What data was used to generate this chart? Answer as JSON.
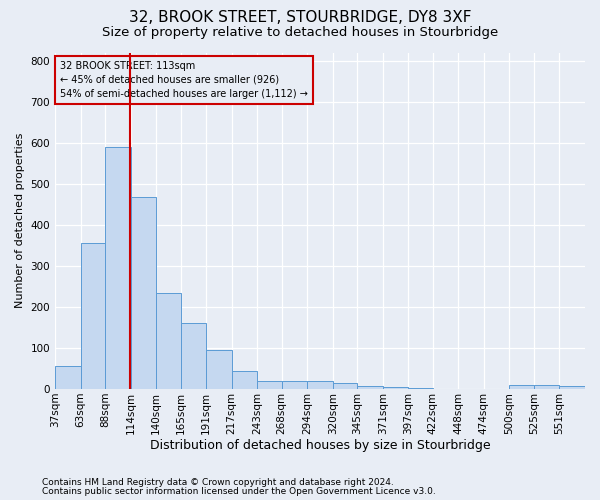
{
  "title": "32, BROOK STREET, STOURBRIDGE, DY8 3XF",
  "subtitle": "Size of property relative to detached houses in Stourbridge",
  "xlabel": "Distribution of detached houses by size in Stourbridge",
  "ylabel": "Number of detached properties",
  "footnote1": "Contains HM Land Registry data © Crown copyright and database right 2024.",
  "footnote2": "Contains public sector information licensed under the Open Government Licence v3.0.",
  "annotation_title": "32 BROOK STREET: 113sqm",
  "annotation_line1": "← 45% of detached houses are smaller (926)",
  "annotation_line2": "54% of semi-detached houses are larger (1,112) →",
  "bar_color": "#c5d8f0",
  "bar_edge_color": "#5b9bd5",
  "marker_color": "#cc0000",
  "marker_value": 113,
  "categories": [
    "37sqm",
    "63sqm",
    "88sqm",
    "114sqm",
    "140sqm",
    "165sqm",
    "191sqm",
    "217sqm",
    "243sqm",
    "268sqm",
    "294sqm",
    "320sqm",
    "345sqm",
    "371sqm",
    "397sqm",
    "422sqm",
    "448sqm",
    "474sqm",
    "500sqm",
    "525sqm",
    "551sqm"
  ],
  "bin_edges": [
    37,
    63,
    88,
    114,
    140,
    165,
    191,
    217,
    243,
    268,
    294,
    320,
    345,
    371,
    397,
    422,
    448,
    474,
    500,
    525,
    551,
    577
  ],
  "values": [
    57,
    355,
    590,
    468,
    235,
    162,
    95,
    45,
    20,
    19,
    19,
    14,
    8,
    5,
    2,
    1,
    0,
    0,
    9,
    10,
    7
  ],
  "ylim": [
    0,
    820
  ],
  "yticks": [
    0,
    100,
    200,
    300,
    400,
    500,
    600,
    700,
    800
  ],
  "background_color": "#e8edf5",
  "grid_color": "#ffffff",
  "title_fontsize": 11,
  "subtitle_fontsize": 9.5,
  "xlabel_fontsize": 9,
  "ylabel_fontsize": 8,
  "tick_fontsize": 7.5,
  "footnote_fontsize": 6.5
}
